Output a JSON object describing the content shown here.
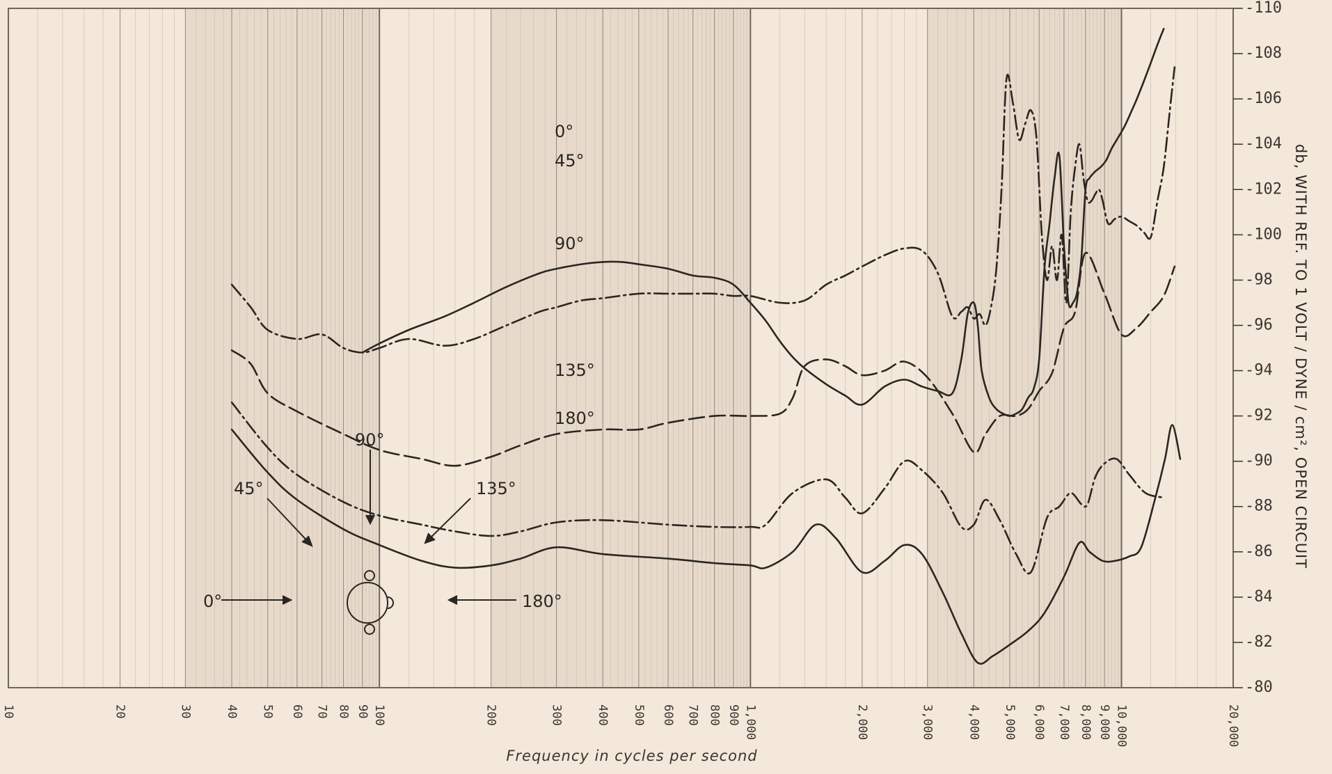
{
  "chart_data": {
    "type": "line",
    "title": "",
    "xlabel": "Frequency in cycles per second",
    "ylabel": "db, WITH REF. TO 1 VOLT / DYNE / cm², OPEN CIRCUIT",
    "xscale": "log",
    "xlim": [
      10,
      20000
    ],
    "ylim": [
      -110,
      -80
    ],
    "y_direction": "down",
    "grid": true,
    "x_ticks": [
      10,
      20,
      30,
      40,
      50,
      60,
      70,
      80,
      90,
      100,
      200,
      300,
      400,
      500,
      600,
      700,
      800,
      900,
      1000,
      2000,
      3000,
      4000,
      5000,
      6000,
      7000,
      8000,
      9000,
      10000,
      20000
    ],
    "x_tick_labels": [
      "10",
      "20",
      "30",
      "40",
      "50",
      "60",
      "70",
      "80",
      "90",
      "100",
      "200",
      "300",
      "400",
      "500",
      "600",
      "700",
      "800",
      "900",
      "1,000",
      "2,000",
      "3,000",
      "4,000",
      "5,000",
      "6,000",
      "7,000",
      "8,000",
      "9,000",
      "10,000",
      "20,000"
    ],
    "y_ticks": [
      -80,
      -82,
      -84,
      -86,
      -88,
      -90,
      -92,
      -94,
      -96,
      -98,
      -100,
      -102,
      -104,
      -106,
      -108,
      -110
    ],
    "y_tick_labels": [
      "-80",
      "-82",
      "-84",
      "-86",
      "-88",
      "-90",
      "-92",
      "-94",
      "-96",
      "-98",
      "-100",
      "-102",
      "-104",
      "-106",
      "-108",
      "-110"
    ],
    "series": [
      {
        "name": "0°",
        "style": "solid",
        "x": [
          40,
          50,
          60,
          80,
          100,
          130,
          160,
          200,
          240,
          300,
          400,
          600,
          800,
          1000,
          1100,
          1300,
          1500,
          1700,
          2000,
          2300,
          2600,
          2900,
          3300,
          3700,
          4100,
          4500,
          5000,
          5600,
          6200,
          7000,
          7700,
          8200,
          8900,
          9600,
          10500,
          11300,
          12300,
          13100,
          13700,
          14400
        ],
        "y": [
          -91.4,
          -89.5,
          -88.3,
          -87.0,
          -86.3,
          -85.6,
          -85.3,
          -85.4,
          -85.7,
          -86.2,
          -85.9,
          -85.7,
          -85.5,
          -85.4,
          -85.3,
          -86.0,
          -87.2,
          -86.6,
          -85.1,
          -85.6,
          -86.3,
          -85.9,
          -84.2,
          -82.4,
          -81.1,
          -81.4,
          -81.9,
          -82.5,
          -83.3,
          -84.9,
          -86.4,
          -86.0,
          -85.6,
          -85.6,
          -85.8,
          -86.2,
          -88.3,
          -90.1,
          -91.6,
          -90.1
        ]
      },
      {
        "name": "45°",
        "style": "dash-dot",
        "x": [
          40,
          50,
          60,
          80,
          100,
          130,
          160,
          200,
          240,
          300,
          400,
          600,
          800,
          1000,
          1100,
          1300,
          1600,
          1800,
          2000,
          2300,
          2600,
          2900,
          3300,
          3700,
          4000,
          4300,
          4700,
          5200,
          5700,
          6300,
          6800,
          7300,
          7800,
          8100,
          8500,
          9000,
          9700,
          10500,
          11600,
          12900
        ],
        "y": [
          -92.6,
          -90.6,
          -89.4,
          -88.2,
          -87.6,
          -87.2,
          -86.9,
          -86.7,
          -86.9,
          -87.3,
          -87.4,
          -87.2,
          -87.1,
          -87.1,
          -87.2,
          -88.6,
          -89.2,
          -88.4,
          -87.7,
          -88.8,
          -90.0,
          -89.6,
          -88.6,
          -87.1,
          -87.2,
          -88.3,
          -87.4,
          -85.9,
          -85.1,
          -87.5,
          -88.0,
          -88.6,
          -88.1,
          -88.1,
          -89.3,
          -89.9,
          -90.1,
          -89.4,
          -88.6,
          -88.4
        ]
      },
      {
        "name": "90°",
        "style": "long-dash",
        "x": [
          40,
          45,
          50,
          60,
          80,
          100,
          130,
          160,
          200,
          240,
          300,
          400,
          500,
          600,
          800,
          1000,
          1200,
          1300,
          1400,
          1600,
          1800,
          2000,
          2300,
          2600,
          3000,
          3500,
          4000,
          4300,
          4700,
          5200,
          5600,
          6000,
          6500,
          7000,
          7500,
          8000,
          9000,
          10000,
          11000,
          12000,
          13000,
          13900
        ],
        "y": [
          -94.9,
          -94.3,
          -93.0,
          -92.2,
          -91.2,
          -90.5,
          -90.1,
          -89.8,
          -90.2,
          -90.7,
          -91.2,
          -91.4,
          -91.4,
          -91.7,
          -92.0,
          -92.0,
          -92.1,
          -92.8,
          -94.2,
          -94.5,
          -94.2,
          -93.8,
          -94.0,
          -94.4,
          -93.7,
          -92.1,
          -90.4,
          -91.2,
          -92.0,
          -92.0,
          -92.3,
          -93.1,
          -93.9,
          -95.9,
          -96.6,
          -99.2,
          -97.4,
          -95.6,
          -95.9,
          -96.6,
          -97.3,
          -98.6
        ]
      },
      {
        "name": "135°",
        "style": "dash-dot",
        "x": [
          40,
          45,
          50,
          60,
          70,
          80,
          90,
          100,
          120,
          150,
          180,
          220,
          270,
          300,
          350,
          400,
          500,
          600,
          700,
          800,
          900,
          1000,
          1200,
          1400,
          1600,
          1800,
          2000,
          2300,
          2600,
          2900,
          3200,
          3500,
          3700,
          3850,
          4000,
          4150,
          4300,
          4450,
          4600,
          4750,
          4900,
          5100,
          5300,
          5500,
          5700,
          5900,
          6100,
          6300,
          6500,
          6700,
          6900,
          7100,
          7300,
          7500,
          7700,
          7900,
          8100,
          8300,
          8500,
          8700,
          8900,
          9200,
          9600,
          10000,
          10500,
          11000,
          11500,
          12000,
          12500,
          13000,
          13500,
          13900
        ],
        "y": [
          -97.8,
          -96.8,
          -95.8,
          -95.4,
          -95.6,
          -95.0,
          -94.8,
          -95.0,
          -95.4,
          -95.1,
          -95.4,
          -96.0,
          -96.6,
          -96.8,
          -97.1,
          -97.2,
          -97.4,
          -97.4,
          -97.4,
          -97.4,
          -97.3,
          -97.3,
          -97.0,
          -97.1,
          -97.8,
          -98.2,
          -98.6,
          -99.1,
          -99.4,
          -99.3,
          -98.3,
          -96.4,
          -96.6,
          -96.8,
          -96.3,
          -96.5,
          -96.0,
          -96.8,
          -98.5,
          -102.0,
          -106.9,
          -105.8,
          -104.2,
          -104.9,
          -105.5,
          -104.3,
          -100.0,
          -98.0,
          -99.5,
          -98.0,
          -100.0,
          -97.0,
          -101.0,
          -103.0,
          -104.0,
          -102.5,
          -101.5,
          -101.5,
          -101.8,
          -102.0,
          -101.5,
          -100.5,
          -100.7,
          -100.8,
          -100.6,
          -100.4,
          -100.1,
          -99.9,
          -101.5,
          -103.0,
          -105.5,
          -107.4
        ]
      },
      {
        "name": "180°",
        "style": "solid",
        "x": [
          90,
          100,
          120,
          150,
          180,
          220,
          270,
          300,
          350,
          400,
          450,
          500,
          600,
          700,
          800,
          900,
          1000,
          1100,
          1200,
          1300,
          1400,
          1600,
          1800,
          2000,
          2300,
          2600,
          2900,
          3200,
          3500,
          3700,
          3850,
          4000,
          4100,
          4200,
          4400,
          4600,
          4800,
          5000,
          5200,
          5400,
          5600,
          5800,
          6000,
          6200,
          6400,
          6600,
          6800,
          7000,
          7200,
          7400,
          7600,
          7800,
          8000,
          8200,
          8500,
          8800,
          9100,
          9400,
          9800,
          10200,
          10600,
          11000,
          11500,
          12000,
          12500,
          13000
        ],
        "y": [
          -94.8,
          -95.2,
          -95.8,
          -96.4,
          -97.0,
          -97.7,
          -98.3,
          -98.5,
          -98.7,
          -98.8,
          -98.8,
          -98.7,
          -98.5,
          -98.2,
          -98.1,
          -97.8,
          -97.0,
          -96.2,
          -95.3,
          -94.6,
          -94.1,
          -93.4,
          -92.9,
          -92.5,
          -93.3,
          -93.6,
          -93.3,
          -93.1,
          -93.0,
          -94.5,
          -96.5,
          -97.0,
          -96.0,
          -94.0,
          -92.8,
          -92.3,
          -92.1,
          -92.0,
          -92.1,
          -92.3,
          -92.8,
          -93.2,
          -94.5,
          -98.5,
          -100.5,
          -102.5,
          -103.5,
          -99.5,
          -97.0,
          -97.0,
          -97.5,
          -99.0,
          -102.0,
          -102.5,
          -102.8,
          -103.0,
          -103.3,
          -103.8,
          -104.3,
          -104.8,
          -105.4,
          -106.0,
          -106.8,
          -107.6,
          -108.4,
          -109.1
        ]
      }
    ],
    "annotations": {
      "curve_labels": [
        "0°",
        "45°",
        "90°",
        "135°",
        "180°"
      ],
      "diagram_labels": [
        "0°",
        "45°",
        "90°",
        "135°",
        "180°"
      ]
    },
    "colors": {
      "paper": "#f3e8da",
      "paper_shade": "#e3d6c6",
      "grid_minor": "#c9bcad",
      "grid_major": "#9a8f84",
      "ink": "#2a2622"
    }
  }
}
